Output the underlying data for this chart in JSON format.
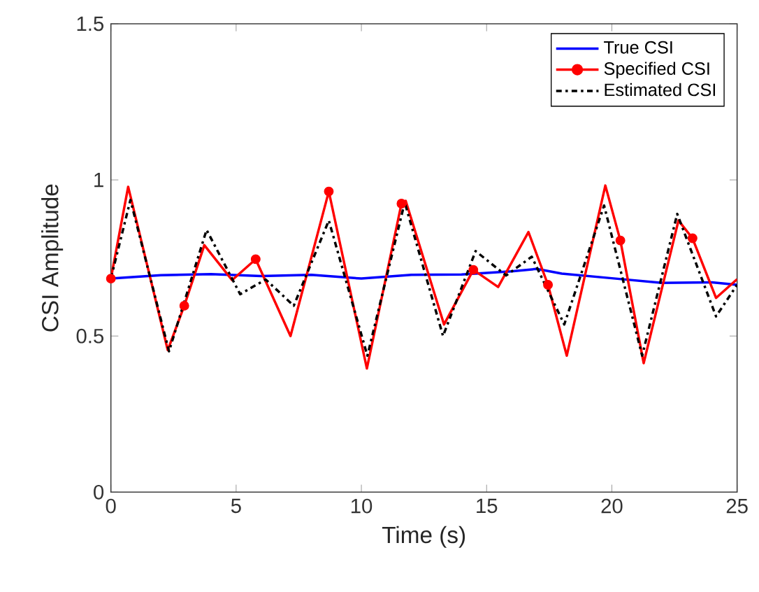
{
  "chart_data": {
    "type": "line",
    "xlabel": "Time (s)",
    "ylabel": "CSI Amplitude",
    "xlim": [
      0,
      25
    ],
    "xticks": [
      0,
      5,
      10,
      15,
      20,
      25
    ],
    "ylim": [
      0,
      1.5
    ],
    "yticks": [
      0,
      0.5,
      1,
      1.5
    ],
    "legend": "top right",
    "grid": false,
    "marker": "none",
    "series": [
      {
        "name": "True CSI",
        "color": "#0000ff",
        "line_style": "solid",
        "x": [
          0,
          2,
          4,
          6,
          8,
          10,
          12,
          14,
          16,
          17,
          18,
          20,
          22,
          24,
          25
        ],
        "values": [
          0.684,
          0.695,
          0.698,
          0.692,
          0.696,
          0.684,
          0.696,
          0.697,
          0.707,
          0.715,
          0.7,
          0.685,
          0.67,
          0.672,
          0.664
        ]
      },
      {
        "name": "Specified CSI",
        "color": "#ff0000",
        "line_style": "solid",
        "x": [
          0,
          0.69,
          2.27,
          2.93,
          3.73,
          4.84,
          5.78,
          7.17,
          8.7,
          10.22,
          11.6,
          11.77,
          13.3,
          14.47,
          15.46,
          16.67,
          17.45,
          18.2,
          19.74,
          20.34,
          21.27,
          22.66,
          23.22,
          24.16,
          25
        ],
        "values": [
          0.684,
          0.978,
          0.455,
          0.597,
          0.791,
          0.679,
          0.746,
          0.5,
          0.963,
          0.396,
          0.924,
          0.933,
          0.537,
          0.712,
          0.657,
          0.833,
          0.664,
          0.437,
          0.982,
          0.806,
          0.413,
          0.87,
          0.813,
          0.622,
          0.682
        ]
      },
      {
        "type": "scatter",
        "color": "#ff0000",
        "marker": "circle",
        "x": [
          0,
          2.93,
          5.78,
          8.7,
          11.6,
          14.47,
          17.45,
          20.34,
          23.22
        ],
        "values": [
          0.684,
          0.597,
          0.746,
          0.963,
          0.924,
          0.712,
          0.664,
          0.806,
          0.813
        ]
      },
      {
        "name": "Estimated CSI",
        "color": "#000000",
        "line_style": "dashdot",
        "x": [
          0,
          0.78,
          2.32,
          3.82,
          5.16,
          6.18,
          7.3,
          8.7,
          10.24,
          11.73,
          13.26,
          14.56,
          15.78,
          16.8,
          18.1,
          19.69,
          21.21,
          22.61,
          24.16,
          25
        ],
        "values": [
          0.684,
          0.936,
          0.451,
          0.84,
          0.634,
          0.681,
          0.597,
          0.87,
          0.437,
          0.928,
          0.5,
          0.772,
          0.694,
          0.754,
          0.537,
          0.918,
          0.437,
          0.891,
          0.563,
          0.664
        ]
      }
    ]
  }
}
